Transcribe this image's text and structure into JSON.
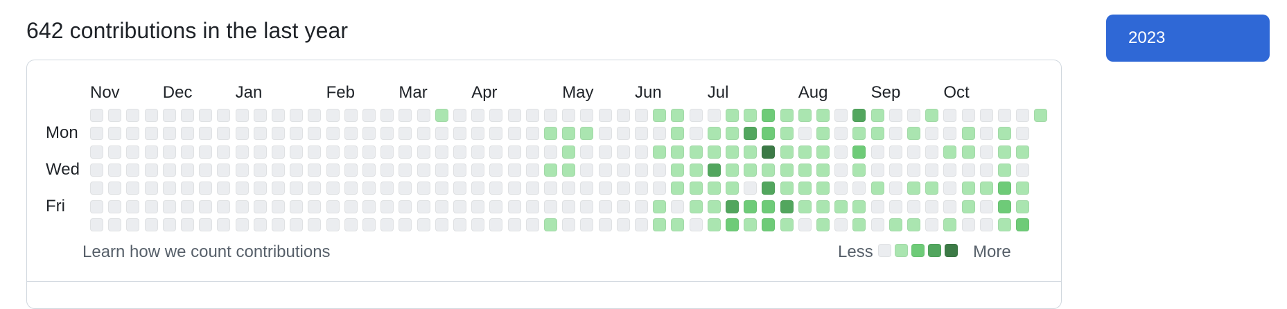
{
  "header": {
    "title": "642 contributions in the last year"
  },
  "year_selector": {
    "selected": "2023"
  },
  "graph": {
    "months": [
      {
        "label": "Nov",
        "week": 0
      },
      {
        "label": "Dec",
        "week": 4
      },
      {
        "label": "Jan",
        "week": 8
      },
      {
        "label": "Feb",
        "week": 13
      },
      {
        "label": "Mar",
        "week": 17
      },
      {
        "label": "Apr",
        "week": 21
      },
      {
        "label": "May",
        "week": 26
      },
      {
        "label": "Jun",
        "week": 30
      },
      {
        "label": "Jul",
        "week": 34
      },
      {
        "label": "Aug",
        "week": 39
      },
      {
        "label": "Sep",
        "week": 43
      },
      {
        "label": "Oct",
        "week": 47
      }
    ],
    "day_labels": [
      {
        "label": "Mon",
        "row": 1
      },
      {
        "label": "Wed",
        "row": 3
      },
      {
        "label": "Fri",
        "row": 5
      }
    ],
    "colors": [
      "#ebedf0",
      "#aae5b0",
      "#6ecb78",
      "#52a65e",
      "#3c7a46"
    ],
    "weeks": [
      [
        0,
        0,
        0,
        0,
        0,
        0,
        0
      ],
      [
        0,
        0,
        0,
        0,
        0,
        0,
        0
      ],
      [
        0,
        0,
        0,
        0,
        0,
        0,
        0
      ],
      [
        0,
        0,
        0,
        0,
        0,
        0,
        0
      ],
      [
        0,
        0,
        0,
        0,
        0,
        0,
        0
      ],
      [
        0,
        0,
        0,
        0,
        0,
        0,
        0
      ],
      [
        0,
        0,
        0,
        0,
        0,
        0,
        0
      ],
      [
        0,
        0,
        0,
        0,
        0,
        0,
        0
      ],
      [
        0,
        0,
        0,
        0,
        0,
        0,
        0
      ],
      [
        0,
        0,
        0,
        0,
        0,
        0,
        0
      ],
      [
        0,
        0,
        0,
        0,
        0,
        0,
        0
      ],
      [
        0,
        0,
        0,
        0,
        0,
        0,
        0
      ],
      [
        0,
        0,
        0,
        0,
        0,
        0,
        0
      ],
      [
        0,
        0,
        0,
        0,
        0,
        0,
        0
      ],
      [
        0,
        0,
        0,
        0,
        0,
        0,
        0
      ],
      [
        0,
        0,
        0,
        0,
        0,
        0,
        0
      ],
      [
        0,
        0,
        0,
        0,
        0,
        0,
        0
      ],
      [
        0,
        0,
        0,
        0,
        0,
        0,
        0
      ],
      [
        0,
        0,
        0,
        0,
        0,
        0,
        0
      ],
      [
        1,
        0,
        0,
        0,
        0,
        0,
        0
      ],
      [
        0,
        0,
        0,
        0,
        0,
        0,
        0
      ],
      [
        0,
        0,
        0,
        0,
        0,
        0,
        0
      ],
      [
        0,
        0,
        0,
        0,
        0,
        0,
        0
      ],
      [
        0,
        0,
        0,
        0,
        0,
        0,
        0
      ],
      [
        0,
        0,
        0,
        0,
        0,
        0,
        0
      ],
      [
        0,
        1,
        0,
        1,
        0,
        0,
        1
      ],
      [
        0,
        1,
        1,
        1,
        0,
        0,
        0
      ],
      [
        0,
        1,
        0,
        0,
        0,
        0,
        0
      ],
      [
        0,
        0,
        0,
        0,
        0,
        0,
        0
      ],
      [
        0,
        0,
        0,
        0,
        0,
        0,
        0
      ],
      [
        0,
        0,
        0,
        0,
        0,
        0,
        0
      ],
      [
        1,
        0,
        1,
        0,
        0,
        1,
        1
      ],
      [
        1,
        1,
        1,
        1,
        1,
        0,
        1
      ],
      [
        0,
        0,
        1,
        1,
        1,
        1,
        0
      ],
      [
        0,
        1,
        1,
        3,
        1,
        1,
        1
      ],
      [
        1,
        1,
        1,
        1,
        1,
        3,
        2
      ],
      [
        1,
        3,
        1,
        1,
        0,
        2,
        1
      ],
      [
        2,
        2,
        4,
        1,
        3,
        2,
        2
      ],
      [
        1,
        1,
        1,
        1,
        1,
        3,
        1
      ],
      [
        1,
        0,
        1,
        1,
        1,
        1,
        0
      ],
      [
        1,
        1,
        1,
        1,
        1,
        1,
        1
      ],
      [
        0,
        0,
        0,
        0,
        0,
        1,
        0
      ],
      [
        3,
        1,
        2,
        1,
        0,
        1,
        1
      ],
      [
        1,
        1,
        0,
        0,
        1,
        0,
        0
      ],
      [
        0,
        0,
        0,
        0,
        0,
        0,
        1
      ],
      [
        0,
        1,
        0,
        0,
        1,
        0,
        1
      ],
      [
        1,
        0,
        0,
        0,
        1,
        0,
        0
      ],
      [
        0,
        0,
        1,
        0,
        0,
        0,
        1
      ],
      [
        0,
        1,
        1,
        0,
        1,
        1,
        0
      ],
      [
        0,
        0,
        0,
        0,
        1,
        0,
        0
      ],
      [
        0,
        1,
        1,
        1,
        2,
        2,
        1
      ],
      [
        0,
        0,
        1,
        0,
        1,
        1,
        2
      ],
      [
        1,
        null,
        null,
        null,
        null,
        null,
        null
      ]
    ]
  },
  "footer": {
    "learn_link": "Learn how we count contributions",
    "less_label": "Less",
    "more_label": "More"
  }
}
